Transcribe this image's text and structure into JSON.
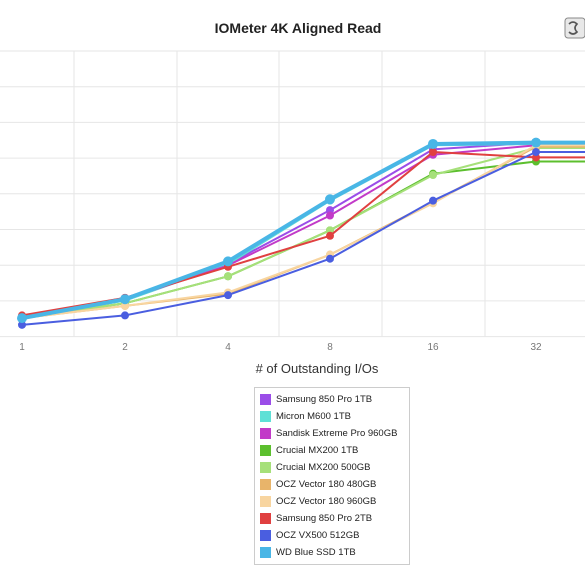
{
  "chart_data": {
    "type": "line",
    "title": "IOMeter 4K Aligned Read",
    "xlabel": "# of Outstanding I/Os",
    "ylabel": "",
    "categories": [
      "1",
      "2",
      "4",
      "8",
      "16",
      "32"
    ],
    "ylim": [
      0,
      100000
    ],
    "grid": true,
    "legend": "bottom-center",
    "series": [
      {
        "name": "Samsung 850 Pro 1TB",
        "color": "#9b4de8",
        "values": [
          7500,
          14500,
          27000,
          47000,
          69500,
          72000
        ]
      },
      {
        "name": "Micron M600 1TB",
        "color": "#5fe0d6",
        "values": [
          7000,
          13500,
          27000,
          50500,
          71000,
          71500
        ]
      },
      {
        "name": "Sandisk Extreme Pro 960GB",
        "color": "#c23ac8",
        "values": [
          7500,
          14000,
          26500,
          45000,
          67500,
          71000
        ]
      },
      {
        "name": "Crucial MX200 1TB",
        "color": "#5cbf2e",
        "values": [
          7000,
          12500,
          22500,
          39500,
          60500,
          65000
        ]
      },
      {
        "name": "Crucial MX200 500GB",
        "color": "#a6e07a",
        "values": [
          7000,
          12500,
          22500,
          39500,
          60000,
          70000
        ]
      },
      {
        "name": "OCZ Vector 180 480GB",
        "color": "#e8b46a",
        "values": [
          7000,
          11500,
          16000,
          30500,
          50000,
          70500
        ]
      },
      {
        "name": "OCZ Vector 180 960GB",
        "color": "#f8d5a0",
        "values": [
          7000,
          11500,
          16500,
          30500,
          49500,
          71000
        ]
      },
      {
        "name": "Samsung 850 Pro 2TB",
        "color": "#e04040",
        "values": [
          8000,
          14500,
          26000,
          37500,
          68500,
          66500
        ]
      },
      {
        "name": "OCZ VX500 512GB",
        "color": "#4a5ee0",
        "values": [
          4500,
          8000,
          15500,
          29000,
          50500,
          68500
        ]
      },
      {
        "name": "WD Blue SSD 1TB",
        "color": "#49b6e6",
        "values": [
          7000,
          14000,
          28000,
          51000,
          71500,
          72000
        ]
      }
    ]
  }
}
